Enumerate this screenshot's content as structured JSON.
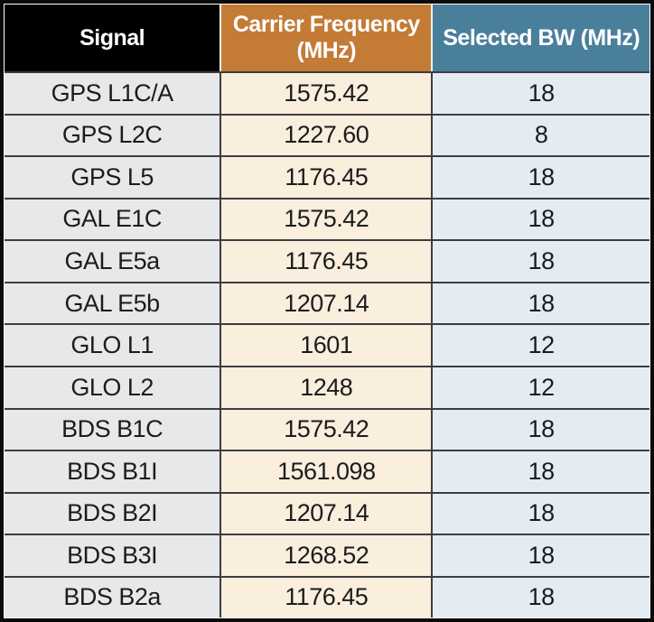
{
  "table": {
    "header": {
      "signal": "Signal",
      "carrier_frequency": "Carrier Frequency\n(MHz)",
      "selected_bw": "Selected BW (MHz)"
    }
  },
  "chart_data": {
    "type": "table",
    "columns": [
      "Signal",
      "Carrier Frequency (MHz)",
      "Selected BW (MHz)"
    ],
    "rows": [
      [
        "GPS L1C/A",
        "1575.42",
        "18"
      ],
      [
        "GPS L2C",
        "1227.60",
        "8"
      ],
      [
        "GPS L5",
        "1176.45",
        "18"
      ],
      [
        "GAL E1C",
        "1575.42",
        "18"
      ],
      [
        "GAL E5a",
        "1176.45",
        "18"
      ],
      [
        "GAL E5b",
        "1207.14",
        "18"
      ],
      [
        "GLO L1",
        "1601",
        "12"
      ],
      [
        "GLO L2",
        "1248",
        "12"
      ],
      [
        "BDS B1C",
        "1575.42",
        "18"
      ],
      [
        "BDS B1I",
        "1561.098",
        "18"
      ],
      [
        "BDS B2I",
        "1207.14",
        "18"
      ],
      [
        "BDS B3I",
        "1268.52",
        "18"
      ],
      [
        "BDS B2a",
        "1176.45",
        "18"
      ]
    ]
  },
  "colors": {
    "outer_border": "#0a0a0a",
    "grid": "#3d3d3f",
    "header_signal_bg": "#000000",
    "header_freq_bg": "#c37b35",
    "header_bw_bg": "#4a7f9c",
    "band_signal_bg": "#e7e8ea",
    "band_freq_bg": "#faeedd",
    "band_bw_bg": "#e4ecf3",
    "header_text": "#ffffff",
    "body_text": "#1c1c1c"
  }
}
